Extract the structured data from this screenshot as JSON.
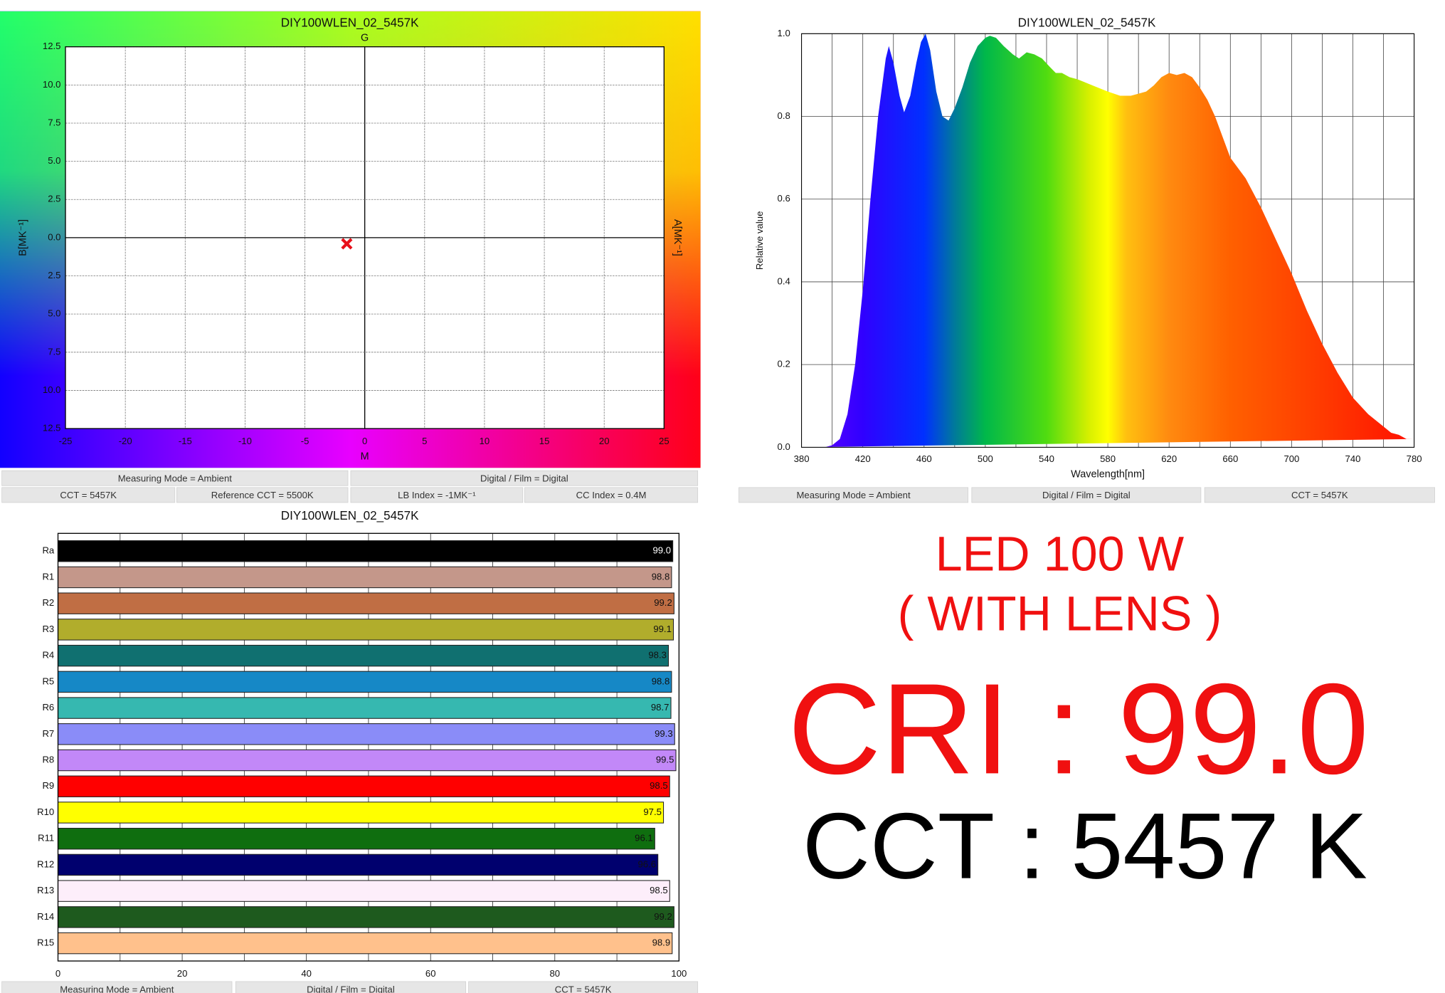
{
  "chart_data": [
    {
      "type": "scatter",
      "title": "DIY100WLEN_02_5457K",
      "top_label": "G",
      "bottom_label": "M",
      "ylabel": "B[MK⁻¹]",
      "y2label": "A[MK⁻¹]",
      "x": [
        -1.5
      ],
      "y": [
        -0.4
      ],
      "color": "#e8101a",
      "xlim": [
        -25,
        25
      ],
      "xticks": [
        -25,
        -20,
        -15,
        -10,
        -5,
        0,
        5,
        10,
        15,
        20,
        25
      ],
      "ylim": [
        -12.5,
        12.5
      ],
      "yticks": [
        12.5,
        {
          "value": 10,
          "label": "10.0"
        },
        7.5,
        {
          "value": 5,
          "label": "5.0"
        },
        2.5,
        {
          "value": 0,
          "label": "0.0"
        },
        {
          "value": -2.5,
          "label": "2.5"
        },
        {
          "value": -5,
          "label": "5.0"
        },
        {
          "value": -7.5,
          "label": "7.5"
        },
        {
          "value": -10,
          "label": "10.0"
        },
        {
          "value": -12.5,
          "label": "12.5"
        }
      ],
      "grid": true,
      "footer": [
        "Measuring Mode = Ambient",
        "Digital / Film = Digital",
        "CCT = 5457K",
        "Reference CCT = 5500K",
        "LB Index = -1MK⁻¹",
        "CC Index = 0.4M"
      ]
    },
    {
      "type": "area",
      "title": "DIY100WLEN_02_5457K",
      "xlabel": "Wavelength[nm]",
      "ylabel": "Relative value",
      "x": [
        380,
        395,
        400,
        405,
        410,
        415,
        420,
        425,
        430,
        435,
        437,
        440,
        444,
        447,
        451,
        455,
        458,
        461,
        464,
        468,
        472,
        476,
        480,
        485,
        490,
        495,
        500,
        503,
        507,
        512,
        518,
        522,
        527,
        532,
        537,
        542,
        546,
        550,
        555,
        560,
        570,
        580,
        588,
        595,
        600,
        605,
        610,
        615,
        620,
        625,
        630,
        635,
        640,
        645,
        650,
        655,
        660,
        670,
        680,
        690,
        700,
        710,
        720,
        730,
        740,
        750,
        760,
        765,
        770,
        775,
        780
      ],
      "values": [
        0,
        0,
        0.005,
        0.02,
        0.08,
        0.2,
        0.38,
        0.6,
        0.8,
        0.94,
        0.97,
        0.93,
        0.85,
        0.81,
        0.85,
        0.93,
        0.98,
        1.0,
        0.96,
        0.86,
        0.8,
        0.79,
        0.82,
        0.87,
        0.93,
        0.97,
        0.99,
        0.995,
        0.99,
        0.97,
        0.95,
        0.94,
        0.955,
        0.95,
        0.94,
        0.92,
        0.905,
        0.905,
        0.895,
        0.89,
        0.875,
        0.86,
        0.85,
        0.85,
        0.855,
        0.86,
        0.875,
        0.895,
        0.905,
        0.9,
        0.905,
        0.895,
        0.87,
        0.84,
        0.8,
        0.75,
        0.7,
        0.65,
        0.58,
        0.5,
        0.42,
        0.33,
        0.25,
        0.18,
        0.12,
        0.08,
        0.05,
        0.035,
        0.03,
        0.02,
        0.02
      ],
      "xlim": [
        380,
        780
      ],
      "xticks": [
        380,
        420,
        460,
        500,
        540,
        580,
        620,
        660,
        700,
        740,
        780
      ],
      "ylim": [
        0,
        1
      ],
      "yticks": [
        {
          "value": 0,
          "label": "0.0"
        },
        0.2,
        0.4,
        0.6,
        0.8,
        {
          "value": 1,
          "label": "1.0"
        }
      ],
      "grid": true,
      "footer": [
        "Measuring Mode = Ambient",
        "Digital / Film = Digital",
        "CCT = 5457K"
      ]
    },
    {
      "type": "bar",
      "title": "DIY100WLEN_02_5457K",
      "categories": [
        "Ra",
        "R1",
        "R2",
        "R3",
        "R4",
        "R5",
        "R6",
        "R7",
        "R8",
        "R9",
        "R10",
        "R11",
        "R12",
        "R13",
        "R14",
        "R15"
      ],
      "values": [
        99.0,
        98.8,
        99.2,
        99.1,
        98.3,
        98.8,
        98.7,
        99.3,
        99.5,
        98.5,
        97.5,
        96.1,
        96.6,
        98.5,
        99.2,
        98.9
      ],
      "value_labels": [
        "99.0",
        "98.8",
        "99.2",
        "99.1",
        "98.3",
        "98.8",
        "98.7",
        "99.3",
        "99.5",
        "98.5",
        "97.5",
        "96.1",
        "96.6",
        "98.5",
        "99.2",
        "98.9"
      ],
      "colors": [
        "#000000",
        "#c4978a",
        "#c06e44",
        "#b1ad2c",
        "#107070",
        "#1688c6",
        "#36b8b0",
        "#8a8cf8",
        "#c288f8",
        "#ff0000",
        "#ffff00",
        "#0f6e0f",
        "#00006e",
        "#fdeefa",
        "#1e5a1e",
        "#ffc18c"
      ],
      "xlim": [
        0,
        100
      ],
      "xticks": [
        0,
        20,
        40,
        60,
        80,
        100
      ],
      "grid": true,
      "footer": [
        "Measuring Mode = Ambient",
        "Digital / Film = Digital",
        "CCT = 5457K"
      ]
    }
  ],
  "summary": {
    "line1": "LED 100 W",
    "line2": "( WITH LENS )",
    "cri": "CRI : 99.0",
    "cct": "CCT : 5457 K"
  }
}
